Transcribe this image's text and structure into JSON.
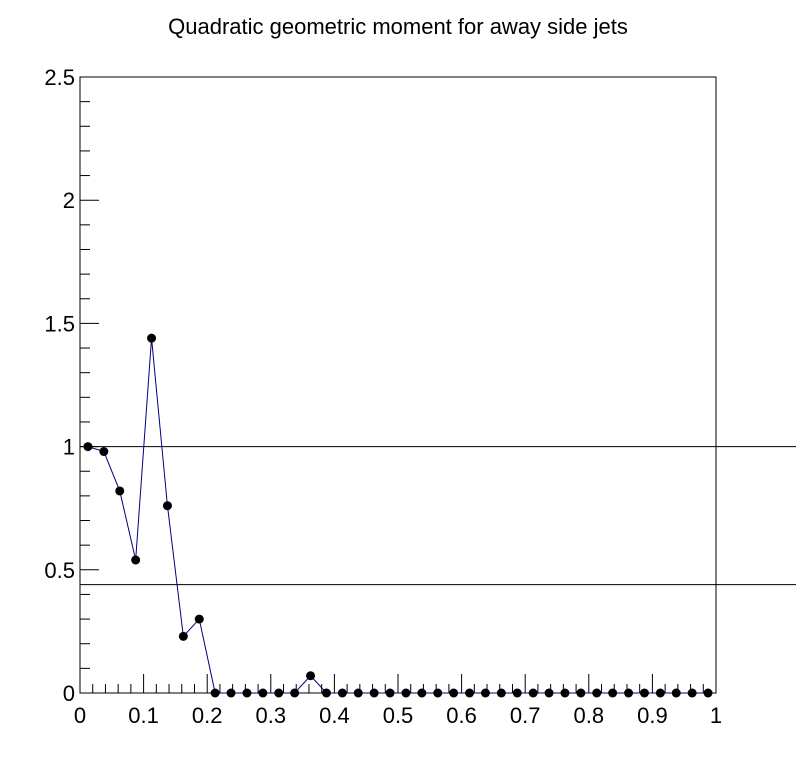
{
  "chart_data": {
    "type": "line",
    "title": "Quadratic geometric moment for away side jets",
    "xlabel": "",
    "ylabel": "",
    "xlim": [
      0,
      1
    ],
    "ylim": [
      0,
      2.5
    ],
    "x_ticks": [
      0,
      0.1,
      0.2,
      0.3,
      0.4,
      0.5,
      0.6,
      0.7,
      0.8,
      0.9,
      1
    ],
    "x_tick_labels": [
      "0",
      "0.1",
      "0.2",
      "0.3",
      "0.4",
      "0.5",
      "0.6",
      "0.7",
      "0.8",
      "0.9",
      "1"
    ],
    "y_ticks": [
      0,
      0.5,
      1,
      1.5,
      2,
      2.5
    ],
    "y_tick_labels": [
      "0",
      "0.5",
      "1",
      "1.5",
      "2",
      "2.5"
    ],
    "horizontal_lines": [
      1.0,
      0.44
    ],
    "series": [
      {
        "color": "#00007f",
        "marker_color": "#000000",
        "x": [
          0.0125,
          0.0375,
          0.0625,
          0.0875,
          0.1125,
          0.1375,
          0.1625,
          0.1875,
          0.2125,
          0.2375,
          0.2625,
          0.2875,
          0.3125,
          0.3375,
          0.3625,
          0.3875,
          0.4125,
          0.4375,
          0.4625,
          0.4875,
          0.5125,
          0.5375,
          0.5625,
          0.5875,
          0.6125,
          0.6375,
          0.6625,
          0.6875,
          0.7125,
          0.7375,
          0.7625,
          0.7875,
          0.8125,
          0.8375,
          0.8625,
          0.8875,
          0.9125,
          0.9375,
          0.9625,
          0.9875
        ],
        "y": [
          1.0,
          0.98,
          0.82,
          0.54,
          1.44,
          0.76,
          0.23,
          0.3,
          0,
          0,
          0,
          0,
          0,
          0,
          0.07,
          0,
          0,
          0,
          0,
          0,
          0,
          0,
          0,
          0,
          0,
          0,
          0,
          0,
          0,
          0,
          0,
          0,
          0,
          0,
          0,
          0,
          0,
          0,
          0,
          0
        ]
      }
    ]
  }
}
